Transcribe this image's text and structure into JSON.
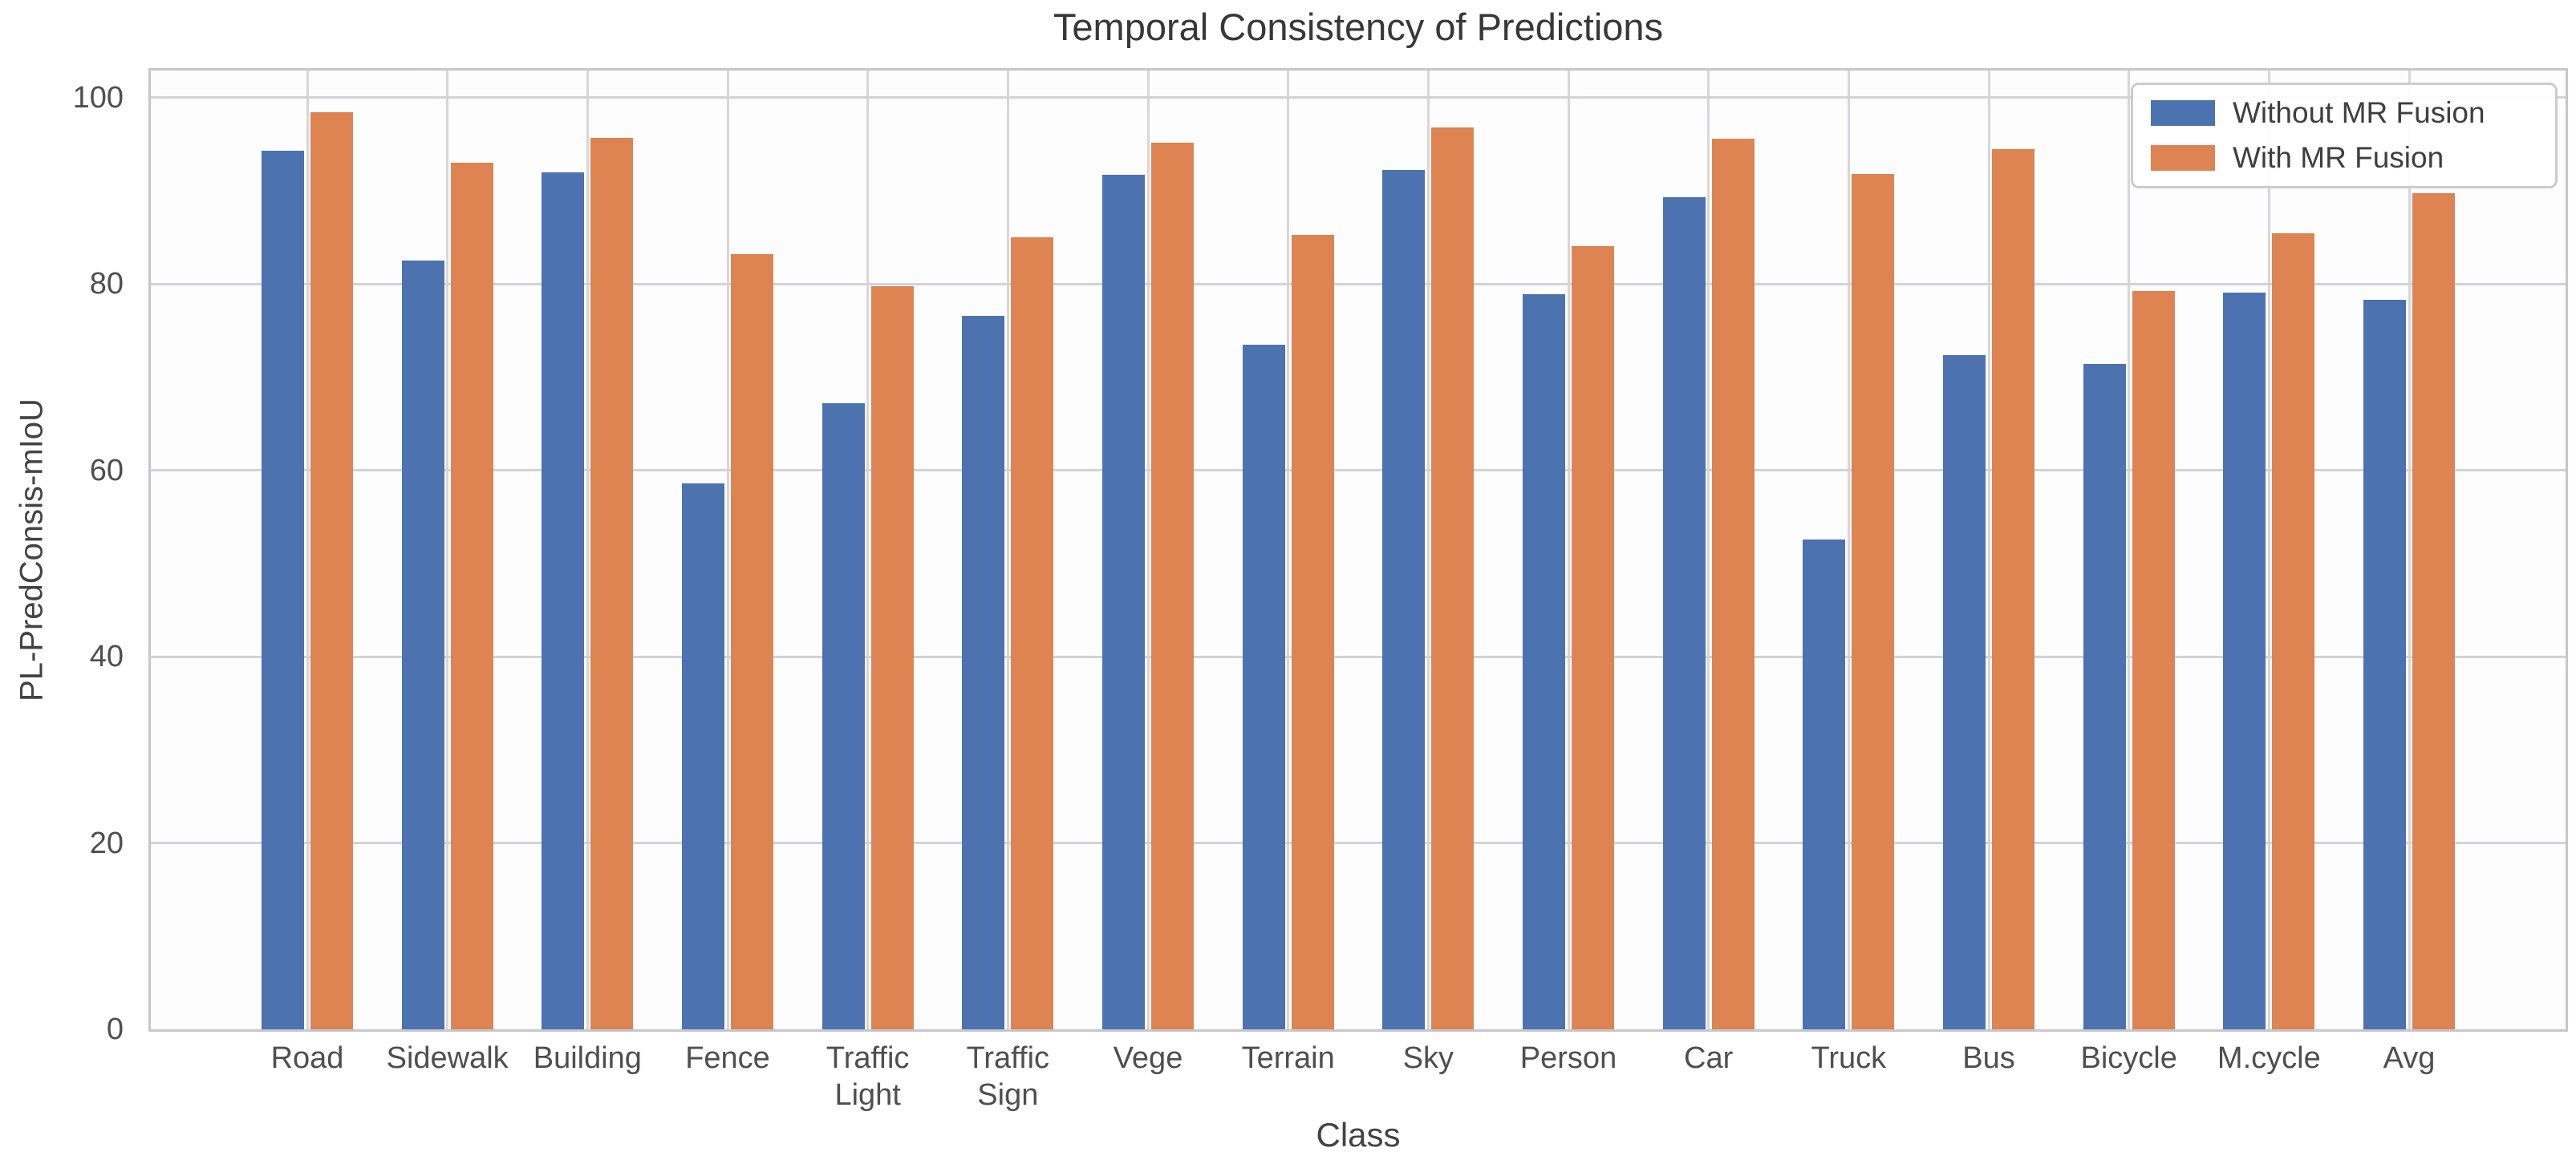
{
  "chart_data": {
    "type": "bar",
    "title": "Temporal Consistency of Predictions",
    "xlabel": "Class",
    "ylabel": "PL-PredConsis-mIoU",
    "ylim": [
      0,
      102.9
    ],
    "yticks": [
      0,
      20,
      40,
      60,
      80,
      100
    ],
    "grid": true,
    "legend_position": "upper right",
    "categories": [
      "Road",
      "Sidewalk",
      "Building",
      "Fence",
      "Traffic\nLight",
      "Traffic\nSign",
      "Vege",
      "Terrain",
      "Sky",
      "Person",
      "Car",
      "Truck",
      "Bus",
      "Bicycle",
      "M.cycle",
      "Avg"
    ],
    "series": [
      {
        "name": "Without MR Fusion",
        "color": "#4C72B0",
        "values": [
          94.3,
          82.5,
          92.0,
          58.6,
          67.2,
          76.6,
          91.7,
          73.5,
          92.2,
          78.9,
          89.3,
          52.6,
          72.4,
          71.4,
          79.1,
          78.3
        ]
      },
      {
        "name": "With MR Fusion",
        "color": "#DD8452",
        "values": [
          98.4,
          93.0,
          95.7,
          83.2,
          79.8,
          85.0,
          95.2,
          85.3,
          96.8,
          84.1,
          95.6,
          91.8,
          94.5,
          79.2,
          85.4,
          89.7
        ]
      }
    ]
  },
  "colors": {
    "series_without": "#4C72B0",
    "series_with": "#DD8452",
    "grid": "#d2d2da",
    "spine": "#c6c6cf",
    "text": "#434343"
  }
}
